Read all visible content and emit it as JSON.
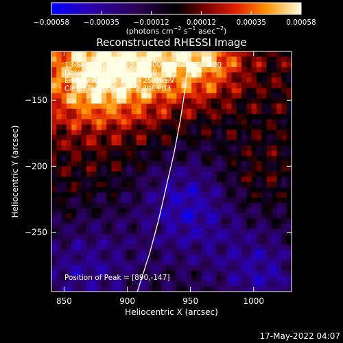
{
  "chart_data": {
    "type": "heatmap",
    "title": "Reconstructed RHESSI Image",
    "xlabel": "Heliocentric X (arcsec)",
    "ylabel": "Heliocentric Y (arcsec)",
    "xlim": [
      840,
      1030
    ],
    "ylim": [
      -295,
      -113
    ],
    "x_ticks": [
      850,
      900,
      950,
      1000
    ],
    "y_ticks": [
      -150,
      -200,
      -250
    ],
    "colorbar": {
      "min": -0.00058,
      "max": 0.00058,
      "ticks": [
        "-0.00058",
        "-0.00035",
        "-0.00012",
        "0.00012",
        "0.00035",
        "0.00058"
      ],
      "units_parts": [
        "(photons cm",
        "-2",
        " s",
        "-1",
        " asec",
        "-2",
        ")"
      ]
    },
    "annotations": [
      "13-Sep-2014 06:50:00.000 to 06:56:00.000",
      "Detectors: 3F 6F 9F, Att 0",
      "Energy Range: 12.0 - 25.0 keV",
      "Clean     Total counts: 2.30E+03"
    ],
    "peak_label": "Position of Peak = [890,-147]",
    "limb_points": [
      [
        948,
        -113
      ],
      [
        946,
        -140
      ],
      [
        942,
        -165
      ],
      [
        937,
        -190
      ],
      [
        931,
        -215
      ],
      [
        925,
        -240
      ],
      [
        918,
        -265
      ],
      [
        908,
        -295
      ]
    ],
    "grid_size": [
      48,
      46
    ],
    "pattern": "clean residual ripple; bright emission top-left and top-centre; negative (purple/blue) region lower half"
  },
  "timestamp": "17-May-2022 04:07"
}
